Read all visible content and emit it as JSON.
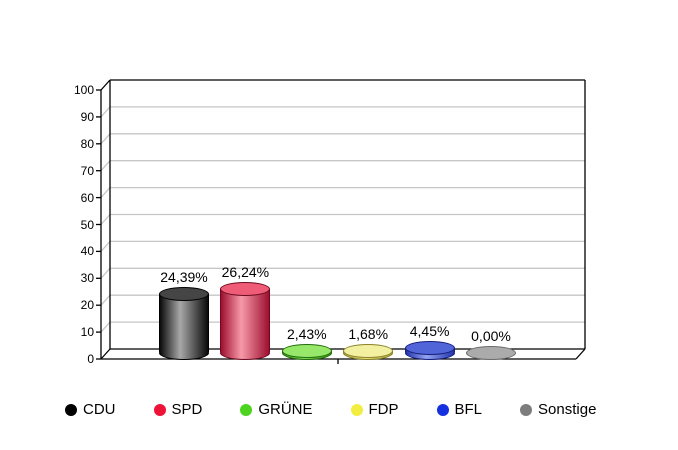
{
  "chart_data": {
    "type": "bar",
    "subtype": "3d-cylinder",
    "title": "",
    "xlabel": "",
    "ylabel": "",
    "categories": [
      "CDU",
      "SPD",
      "GRÜNE",
      "FDP",
      "BFL",
      "Sonstige"
    ],
    "values": [
      24.39,
      26.24,
      2.43,
      1.68,
      4.45,
      0.0
    ],
    "value_labels": [
      "24,39%",
      "26,24%",
      "2,43%",
      "1,68%",
      "4,45%",
      "0,00%"
    ],
    "ylim": [
      0,
      100
    ],
    "ytick_step": 10,
    "ytick_labels": [
      "0",
      "10",
      "20",
      "30",
      "40",
      "50",
      "60",
      "70",
      "80",
      "90",
      "100"
    ],
    "grid": true,
    "legend_position": "bottom"
  },
  "colors": {
    "background": "#ffffff",
    "frame": "#000000",
    "grid": "#c6c6c6",
    "label_text": "#000000",
    "legend_dots": {
      "CDU": "#000000",
      "SPD": "#ee1236",
      "GRÜNE": "#4cd41f",
      "FDP": "#f1ee41",
      "BFL": "#1430e0",
      "Sonstige": "#7d7d7d"
    },
    "bar_styles": {
      "CDU": {
        "top": "#454545",
        "edge": "#0a0a0a",
        "mid": "#a8a8a8",
        "outline": "#000000"
      },
      "SPD": {
        "top": "#ee5c77",
        "edge": "#9d1030",
        "mid": "#f799a8",
        "outline": "#6e0a20"
      },
      "GRÜNE": {
        "top": "#97e76b",
        "edge": "#2f8c12",
        "mid": "#86df58",
        "outline": "#236e0a"
      },
      "FDP": {
        "top": "#f3f0a2",
        "edge": "#a8a132",
        "mid": "#ece67f",
        "outline": "#89832a"
      },
      "BFL": {
        "top": "#5165d8",
        "edge": "#2334aa",
        "mid": "#93a3ee",
        "outline": "#141e7e"
      },
      "Sonstige": {
        "top": "#ababab",
        "edge": "#ababab",
        "mid": "#ababab",
        "outline": "#6b6b6b"
      }
    }
  },
  "legend": {
    "items": [
      {
        "label": "CDU"
      },
      {
        "label": "SPD"
      },
      {
        "label": "GRÜNE"
      },
      {
        "label": "FDP"
      },
      {
        "label": "BFL"
      },
      {
        "label": "Sonstige"
      }
    ]
  }
}
